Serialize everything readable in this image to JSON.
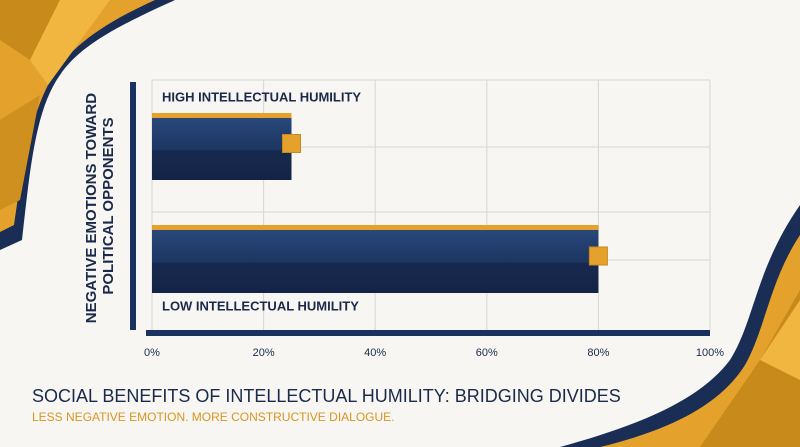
{
  "chart_data": {
    "type": "hbar",
    "title": "SOCIAL BENEFITS OF INTELLECTUAL HUMILITY: BRIDGING DIVIDES",
    "subtitle": "LESS NEGATIVE EMOTION. MORE CONSTRUCTIVE DIALOGUE.",
    "ylabel": [
      "NEGATIVE EMOTIONS TOWARD",
      "POLITICAL OPPONENTS"
    ],
    "categories": [
      "HIGH INTELLECTUAL HUMILITY",
      "LOW INTELLECTUAL HUMILITY"
    ],
    "values": [
      25,
      80
    ],
    "color": "#1b3260",
    "accent": "#e4a22c",
    "xlim": [
      0,
      100
    ],
    "xticks": [
      {
        "value": 0,
        "label": "0%"
      },
      {
        "value": 20,
        "label": "20%"
      },
      {
        "value": 40,
        "label": "40%"
      },
      {
        "value": 60,
        "label": "60%"
      },
      {
        "value": 80,
        "label": "80%"
      },
      {
        "value": 100,
        "label": "100%"
      }
    ],
    "grid": true
  }
}
